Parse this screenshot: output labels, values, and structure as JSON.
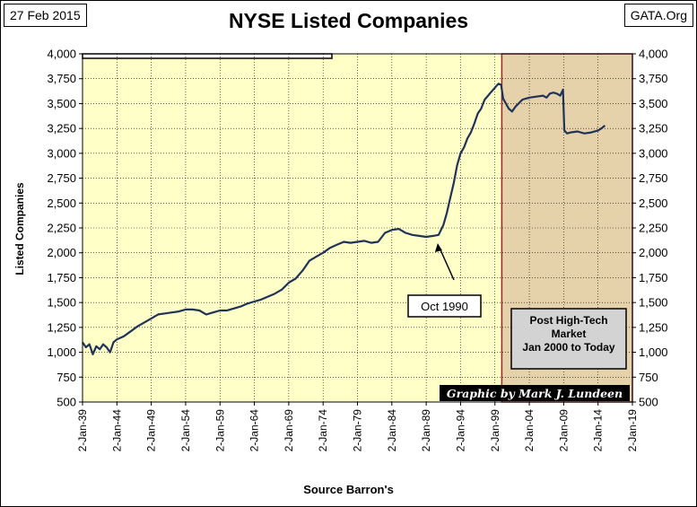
{
  "header": {
    "date": "27 Feb 2015",
    "source": "GATA.Org",
    "title": "NYSE Listed Companies"
  },
  "chart_data": {
    "type": "line",
    "title": "NYSE Listed Companies",
    "ylabel": "Listed  Companies",
    "xlabel": "Source Barron's",
    "ylim": [
      500,
      4000
    ],
    "xlim": [
      1939,
      2019
    ],
    "y_ticks": [
      "4,000",
      "3,750",
      "3,500",
      "3,250",
      "3,000",
      "2,750",
      "2,500",
      "2,250",
      "2,000",
      "1,750",
      "1,500",
      "1,250",
      "1,000",
      "750",
      "500"
    ],
    "y_tick_values": [
      4000,
      3750,
      3500,
      3250,
      3000,
      2750,
      2500,
      2250,
      2000,
      1750,
      1500,
      1250,
      1000,
      750,
      500
    ],
    "x_ticks": [
      "2-Jan-39",
      "2-Jan-44",
      "2-Jan-49",
      "2-Jan-54",
      "2-Jan-59",
      "2-Jan-64",
      "2-Jan-69",
      "2-Jan-74",
      "2-Jan-79",
      "2-Jan-84",
      "2-Jan-89",
      "2-Jan-94",
      "2-Jan-99",
      "2-Jan-04",
      "2-Jan-09",
      "2-Jan-14",
      "2-Jan-19"
    ],
    "x_tick_values": [
      1939,
      1944,
      1949,
      1954,
      1959,
      1964,
      1969,
      1974,
      1979,
      1984,
      1989,
      1994,
      1999,
      2004,
      2009,
      2014,
      2019
    ],
    "grid": true,
    "series": [
      {
        "x": [
          1939,
          1939.5,
          1940,
          1940.5,
          1941,
          1941.5,
          1942,
          1942.5,
          1943,
          1943.5,
          1944,
          1945,
          1946,
          1947,
          1948,
          1949,
          1950,
          1951,
          1952,
          1953,
          1954,
          1955,
          1956,
          1957,
          1958,
          1959,
          1960,
          1961,
          1962,
          1963,
          1964,
          1965,
          1966,
          1967,
          1968,
          1969,
          1970,
          1971,
          1972,
          1973,
          1974,
          1975,
          1976,
          1977,
          1978,
          1979,
          1980,
          1981,
          1982,
          1983,
          1984,
          1985,
          1986,
          1987,
          1988,
          1989,
          1990,
          1990.8,
          1991.5,
          1992,
          1992.5,
          1993,
          1993.5,
          1994,
          1994.5,
          1995,
          1995.5,
          1996,
          1996.5,
          1997,
          1997.5,
          1998,
          1998.5,
          1999,
          1999.5,
          1999.9,
          2000.2,
          2000.6,
          2001,
          2001.5,
          2002,
          2003,
          2004,
          2005,
          2006,
          2006.5,
          2007,
          2007.5,
          2008,
          2008.5,
          2008.9,
          2009.1,
          2009.5,
          2010,
          2011,
          2012,
          2013,
          2014,
          2014.5,
          2015
        ],
        "y": [
          1100,
          1050,
          1080,
          980,
          1060,
          1030,
          1080,
          1050,
          1000,
          1100,
          1130,
          1160,
          1210,
          1260,
          1300,
          1340,
          1380,
          1390,
          1400,
          1410,
          1430,
          1430,
          1420,
          1380,
          1400,
          1420,
          1420,
          1440,
          1460,
          1490,
          1510,
          1530,
          1560,
          1590,
          1630,
          1700,
          1740,
          1820,
          1920,
          1960,
          2000,
          2050,
          2080,
          2110,
          2100,
          2110,
          2120,
          2100,
          2110,
          2200,
          2230,
          2240,
          2200,
          2180,
          2170,
          2160,
          2170,
          2180,
          2280,
          2400,
          2550,
          2700,
          2880,
          3000,
          3060,
          3150,
          3210,
          3300,
          3400,
          3450,
          3540,
          3580,
          3620,
          3660,
          3700,
          3690,
          3550,
          3500,
          3450,
          3420,
          3470,
          3540,
          3560,
          3570,
          3580,
          3560,
          3600,
          3610,
          3600,
          3580,
          3640,
          3230,
          3200,
          3210,
          3220,
          3200,
          3210,
          3230,
          3250,
          3280
        ]
      }
    ],
    "shaded_region": {
      "x": [
        2000,
        2019
      ],
      "label": [
        "Post High-Tech",
        "Market",
        "Jan 2000 to Today"
      ]
    },
    "annotations": {
      "arrow_label": "Oct 1990",
      "arrow_x": 1990.8,
      "credit": "Graphic by Mark J. Lundeen"
    },
    "colors": {
      "line": "#1f3358",
      "plot_bg": "#ffffc8",
      "shade": "#e6d2aa",
      "shade_border": "#a0242c",
      "grid": "#000000",
      "credit_bg": "#000000",
      "credit_text": "#ffffff",
      "box_bg": "#d3d3d3"
    }
  }
}
